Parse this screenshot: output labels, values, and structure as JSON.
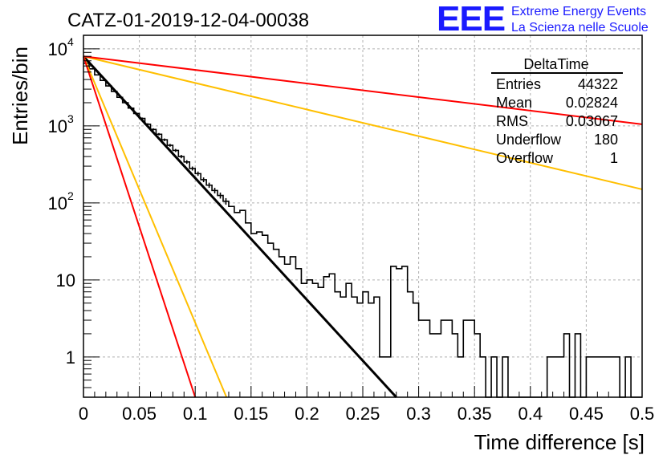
{
  "title": "CATZ-01-2019-12-04-00038",
  "logo": {
    "text": "EEE",
    "line1": "Extreme Energy Events",
    "line2": "La Scienza nelle Scuole",
    "color": "#1a1aff"
  },
  "stats": {
    "name": "DeltaTime",
    "rows": [
      {
        "label": "Entries",
        "value": "44322"
      },
      {
        "label": "Mean",
        "value": "0.02824"
      },
      {
        "label": "RMS",
        "value": "0.03067"
      },
      {
        "label": "Underflow",
        "value": "180"
      },
      {
        "label": "Overflow",
        "value": "1"
      }
    ]
  },
  "chart_data": {
    "type": "histogram",
    "xlabel": "Time difference [s]",
    "ylabel": "Entries/bin",
    "xlim": [
      0,
      0.5
    ],
    "ylim": [
      0.3,
      15000
    ],
    "yscale": "log",
    "grid": true,
    "x_ticks": [
      0,
      0.05,
      0.1,
      0.15,
      0.2,
      0.25,
      0.3,
      0.35,
      0.4,
      0.45,
      0.5
    ],
    "x_tick_labels": [
      "0",
      "0.05",
      "0.1",
      "0.15",
      "0.2",
      "0.25",
      "0.3",
      "0.35",
      "0.4",
      "0.45",
      "0.5"
    ],
    "y_ticks": [
      1,
      10,
      100,
      1000,
      10000
    ],
    "y_tick_labels": [
      {
        "base": "1",
        "exp": ""
      },
      {
        "base": "10",
        "exp": ""
      },
      {
        "base": "10",
        "exp": "2"
      },
      {
        "base": "10",
        "exp": "3"
      },
      {
        "base": "10",
        "exp": "4"
      }
    ],
    "bin_width": 0.005,
    "histogram_counts": [
      6500,
      5500,
      4600,
      3900,
      3300,
      2800,
      2350,
      2000,
      1700,
      1450,
      1250,
      1050,
      900,
      780,
      660,
      560,
      480,
      400,
      340,
      280,
      240,
      200,
      170,
      145,
      125,
      105,
      90,
      75,
      80,
      55,
      40,
      42,
      38,
      30,
      25,
      20,
      16,
      20,
      14,
      9,
      10,
      9,
      8,
      11,
      12,
      7,
      6,
      9,
      6,
      5,
      7,
      5,
      6,
      1,
      1,
      15,
      14,
      15,
      7,
      5,
      3,
      3,
      2,
      2,
      3,
      3,
      2,
      1,
      3,
      3,
      2,
      1,
      0,
      1,
      0,
      1,
      0,
      0,
      0,
      0,
      0,
      0,
      0,
      1,
      1,
      1,
      2,
      0,
      2,
      0,
      1,
      1,
      1,
      1,
      1,
      1,
      0,
      1,
      0,
      0
    ],
    "fit_lines": [
      {
        "color": "#000000",
        "y0": 8000,
        "x1": 0.28,
        "y1": 0.3
      },
      {
        "color": "#ffbf00",
        "y0": 8000,
        "x1": 0.5,
        "y1": 150
      },
      {
        "color": "#ff0000",
        "y0": 8000,
        "x1": 0.5,
        "y1": 1050
      },
      {
        "color": "#ffbf00",
        "y0": 8000,
        "x1": 0.128,
        "y1": 0.3
      },
      {
        "color": "#ff0000",
        "y0": 8000,
        "x1": 0.1,
        "y1": 0.3
      }
    ]
  }
}
